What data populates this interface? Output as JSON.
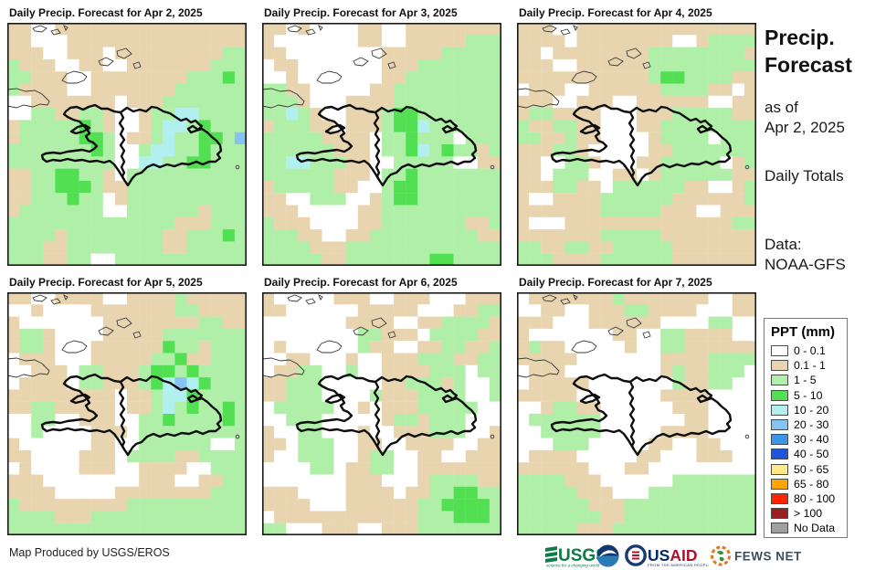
{
  "maps": [
    {
      "title": "Daily Precip. Forecast for Apr 2, 2025",
      "grid": [
        "TTWWTTTTTTTTTTTTTTTT",
        "TTWWWTTTTTTTTTTTTTTT",
        "TTTWWTTTWTTTTTTTTTLL",
        "LTTTWWTTWWTTTTTTTLLL",
        "LLTTTWWTTTTTTTTLLLGL",
        "LTTTTWWTTTTTTTLLLLLL",
        "WWTTTTTTTWTTTLLLLLLL",
        "WWLLTTLLTWWTLLCCLLLL",
        "TLLLLLGLTWWTLCCLGLLL",
        "TLLLLLGGLWTTLCLLGGLB",
        "LLLLLLLGLWWLCCLLGLLL",
        "LLLLLLLLLWWCCLLGGLLL",
        "TTLLGGLLTWLLLLLLLLLL",
        "TTLLGGGLTTLLLLLLLLLL",
        "TTLLLGLLWTLLLLLLLLLL",
        "TLLLLLLLWWLLLLLLTLLL",
        "LLLLLLLLLLLLLLTTTLLL",
        "LLLLTLLLLLLLLTTLLLGL",
        "LLLTTLLLLLLLLTTLLLLL",
        "LLLTTLLWWLLLLLLLLLLL"
      ]
    },
    {
      "title": "Daily Precip. Forecast for Apr 3, 2025",
      "grid": [
        "TTWTWWWWTTWWTTTTTTTT",
        "TWWWWWWWTTWWTTTTTLLL",
        "TTWWWWWWWWTTTTTLLLLL",
        "WTTWWWWWWWTTTLLLLLLL",
        "WWTWWWWWWWTTLLLLLLLL",
        "LLTTWWWWWTTLLLLLLLLL",
        "LLLTWWWTTTTLLLLLLLLL",
        "LLCLTWWTTTLGGLLLLLLL",
        "TLLLTTWTTTLGGCLLLLLL",
        "LLLLLTTTTWLLGLLLWLLL",
        "LLLLLLTTTWLLGCLGLLTL",
        "LLCCLLLTTWWLLLLLWWTT",
        "LLLLLLTTTWLLGLLLLLLL",
        "TLLLLLTTWWLGGLLLLLLL",
        "TTWWLLLWWTLGGLLLLLLL",
        "TTTWWWWWTTLLLLLLLLLL",
        "LTTTWWWWTTLLLLLLLTTL",
        "LLLTTWWTTLLLLLLLLLTT",
        "LLLLTTTLLLLLLLLLLLLL",
        "LLLLLTTLLLLLLLGGLLLL"
      ]
    },
    {
      "title": "Daily Precip. Forecast for Apr 4, 2025",
      "grid": [
        "TTTWWTTTTTTTTTTTTTTT",
        "TTTTWTTTTTTTTWWTLLLL",
        "TTWTTTTTTTTLLLLLLLLT",
        "TTTWWTTTTTTLLLLLLLLL",
        "TTTTTTTTTTTLGGLLLLTT",
        "WTTTWWTTTTTTLLLLTTWT",
        "TTTWWTTTWWTTTTTTWWTT",
        "TLLTTTTWWWTTTLLLLLTT",
        "LTTLLTTWWWTTLLLLLLLL",
        "LLTTLTTWWWWTLLLLWLLL",
        "TTTLLTWWWWWTTLLLLLLL",
        "TTWWLLTWWWTTLLLLLWTL",
        "TTWLLLWWTTWTLLLLLLTT",
        "TTTLLTTWLLLLLLTTWWTL",
        "TWWTTTTLLLLLLTTTTTTL",
        "TTTTTTTLLLLLTTTWWTTT",
        "TWWWTTTTTTTTTTTTTTLL",
        "TTTTTTTLLLLLTTTTTTTT",
        "LLTTLLTTLLLLLTTTTTTT",
        "LLLTTTTLLLLLLTTTTTTT"
      ]
    },
    {
      "title": "Daily Precip. Forecast for Apr 5, 2025",
      "grid": [
        "TTWWTTTTWWTTTTLTTTTT",
        "WWTWWWWTTTTTTTLLTTTT",
        "TWWWWWWWTTTTTTTTLLTT",
        "TLLTWWWWTTTTTLLLLLLL",
        "TLLTWWWTTTTTTGLLTLLL",
        "WTTTWWWTTTTTLLGTTLLL",
        "WWTTTWLLTTTLGGLGLLLL",
        "WTTTTWLLTTTLGCBCGLLL",
        "TTTTTTTTTWTTLCCGLLLL",
        "TTLLTTTTTWTTLCLGLLGL",
        "WWLLWWTTTWWLLGLLLLGL",
        "WWLWWWWTTTWLLLLLLLLL",
        "TWWWWWWTTWWLLLLLLWWL",
        "TTWWWWTTTWLLLLTTLLLL",
        "WTWWWWTTTWWTTTTWWLLL",
        "TTTWWWWWWWWTTTWWTTLL",
        "TTTTWWWWWTTTTTTTTLLL",
        "LTTTTTTTTTLLLLLLLLLL",
        "LLLLTTTLLLLLLLLLLLLL",
        "LLLLLLLLLLLLLLLLLLLL"
      ]
    },
    {
      "title": "Daily Precip. Forecast for Apr 6, 2025",
      "grid": [
        "TWWWWWTTTWWTTTWWWTTT",
        "TTWWWWWWTTTTTWWWTTLL",
        "WWWWWWWTTTTWWTTLLLLT",
        "WWWWWWWWLLTTTWLLLLTT",
        "WTWWWWWWLTTWWTTLLTTL",
        "WWTTWWWTWWTTTLLLTTLL",
        "WTTLLWWLWWTTTTLLLWLL",
        "TTLLLWWWWWTTLLLTLWWL",
        "TTLLLWWWWLTTTLLLLWWL",
        "WLLLLLWWTWTTTLLLLLWW",
        "WWLLLWWWWWTLLTLLLWWW",
        "TWWLLWWWTWWTTTLLLWWT",
        "TTWLLLWWTTWWTTTTWWTT",
        "TWWLLLWWTLLWWTTWWTTT",
        "WWWWLLWTTLLWWTTTTTTT",
        "WWWWWWWTTTWWWTLLLLTT",
        "TTTWWWWTTTTWTTLLGGLL",
        "TTTTWWWTTTTTTLLGGGGL",
        "WTTTTTTTTTTTTLLLGGGL",
        "LLWWWTTTWWTTTLLLLLLL"
      ]
    },
    {
      "title": "Daily Precip. Forecast for Apr 7, 2025",
      "grid": [
        "WTTTTTTTLTTTTTTTWWTT",
        "WWTTWWTTTLLTTTTWWWTT",
        "TTTWWWTTTTTTWWWWLLWW",
        "TWWWWWWWTTWWLLTTTTWW",
        "TLTTWWWWWTWWLLTTTTTT",
        "TTTTTWWWWWWWTTTTLLLL",
        "WTTTWWWWWWWWTLTTLLLW",
        "WTTTTTWWWWWWWLTTLLWW",
        "TTTTTWWWWWWWTTTTWWWW",
        "WWTLLTTWWWWWWTTTWWWW",
        "WLLLLLLWWWWWWWTTWWWW",
        "WWLLLLLWWWWWTTTTWWWW",
        "WWWLLLWWWWWTTWWTTWWW",
        "WTTTTWWWWWTTWWWTTTWW",
        "TTTTTTWWWTTWWWWWWWWW",
        "LLLLTTTWWWWWWLLLLLLL",
        "LLLLLTTTWWWLLLLLLLLL",
        "LLLLLLTTTLLLLLLLLLLL",
        "LLLLLLLTTLLLLLLLLLLL",
        "LLLLLTTTLLLLLLLLLLLL"
      ]
    }
  ],
  "map_colors": {
    "W": "#ffffff",
    "T": "#e8d5b0",
    "L": "#b0efa8",
    "G": "#52e052",
    "C": "#b2f0f0",
    "B": "#85c4f2"
  },
  "sidebar": {
    "title_line1": "Precip.",
    "title_line2": "Forecast",
    "as_of_label": "as of",
    "as_of_date": "Apr 2, 2025",
    "totals_label": "Daily Totals",
    "data_label": "Data:",
    "data_source": "NOAA-GFS"
  },
  "legend": {
    "title": "PPT (mm)",
    "items": [
      {
        "label": "0 - 0.1",
        "color": "#ffffff"
      },
      {
        "label": "0.1 - 1",
        "color": "#e8d5b0"
      },
      {
        "label": "1 - 5",
        "color": "#b0efa8"
      },
      {
        "label": "5 - 10",
        "color": "#52e052"
      },
      {
        "label": "10 - 20",
        "color": "#b2f0f0"
      },
      {
        "label": "20 - 30",
        "color": "#85c4f2"
      },
      {
        "label": "30 - 40",
        "color": "#3a96e8"
      },
      {
        "label": "40 - 50",
        "color": "#1d55e0"
      },
      {
        "label": "50 - 65",
        "color": "#ffe885"
      },
      {
        "label": "65 - 80",
        "color": "#ffa500"
      },
      {
        "label": "80 - 100",
        "color": "#ff2400"
      },
      {
        "label": "> 100",
        "color": "#9c1f1f"
      },
      {
        "label": "No Data",
        "color": "#a0a0a0"
      }
    ]
  },
  "footer": {
    "credit": "Map Produced by USGS/EROS",
    "logos": {
      "usgs": {
        "text": "USGS",
        "tagline": "science for a changing world"
      },
      "noaa": {
        "name": "NOAA"
      },
      "usaid": {
        "text_us": "US",
        "text_aid": "AID",
        "tagline": "FROM THE AMERICAN PEOPLE"
      },
      "fewsnet": {
        "text": "FEWS NET"
      }
    }
  }
}
